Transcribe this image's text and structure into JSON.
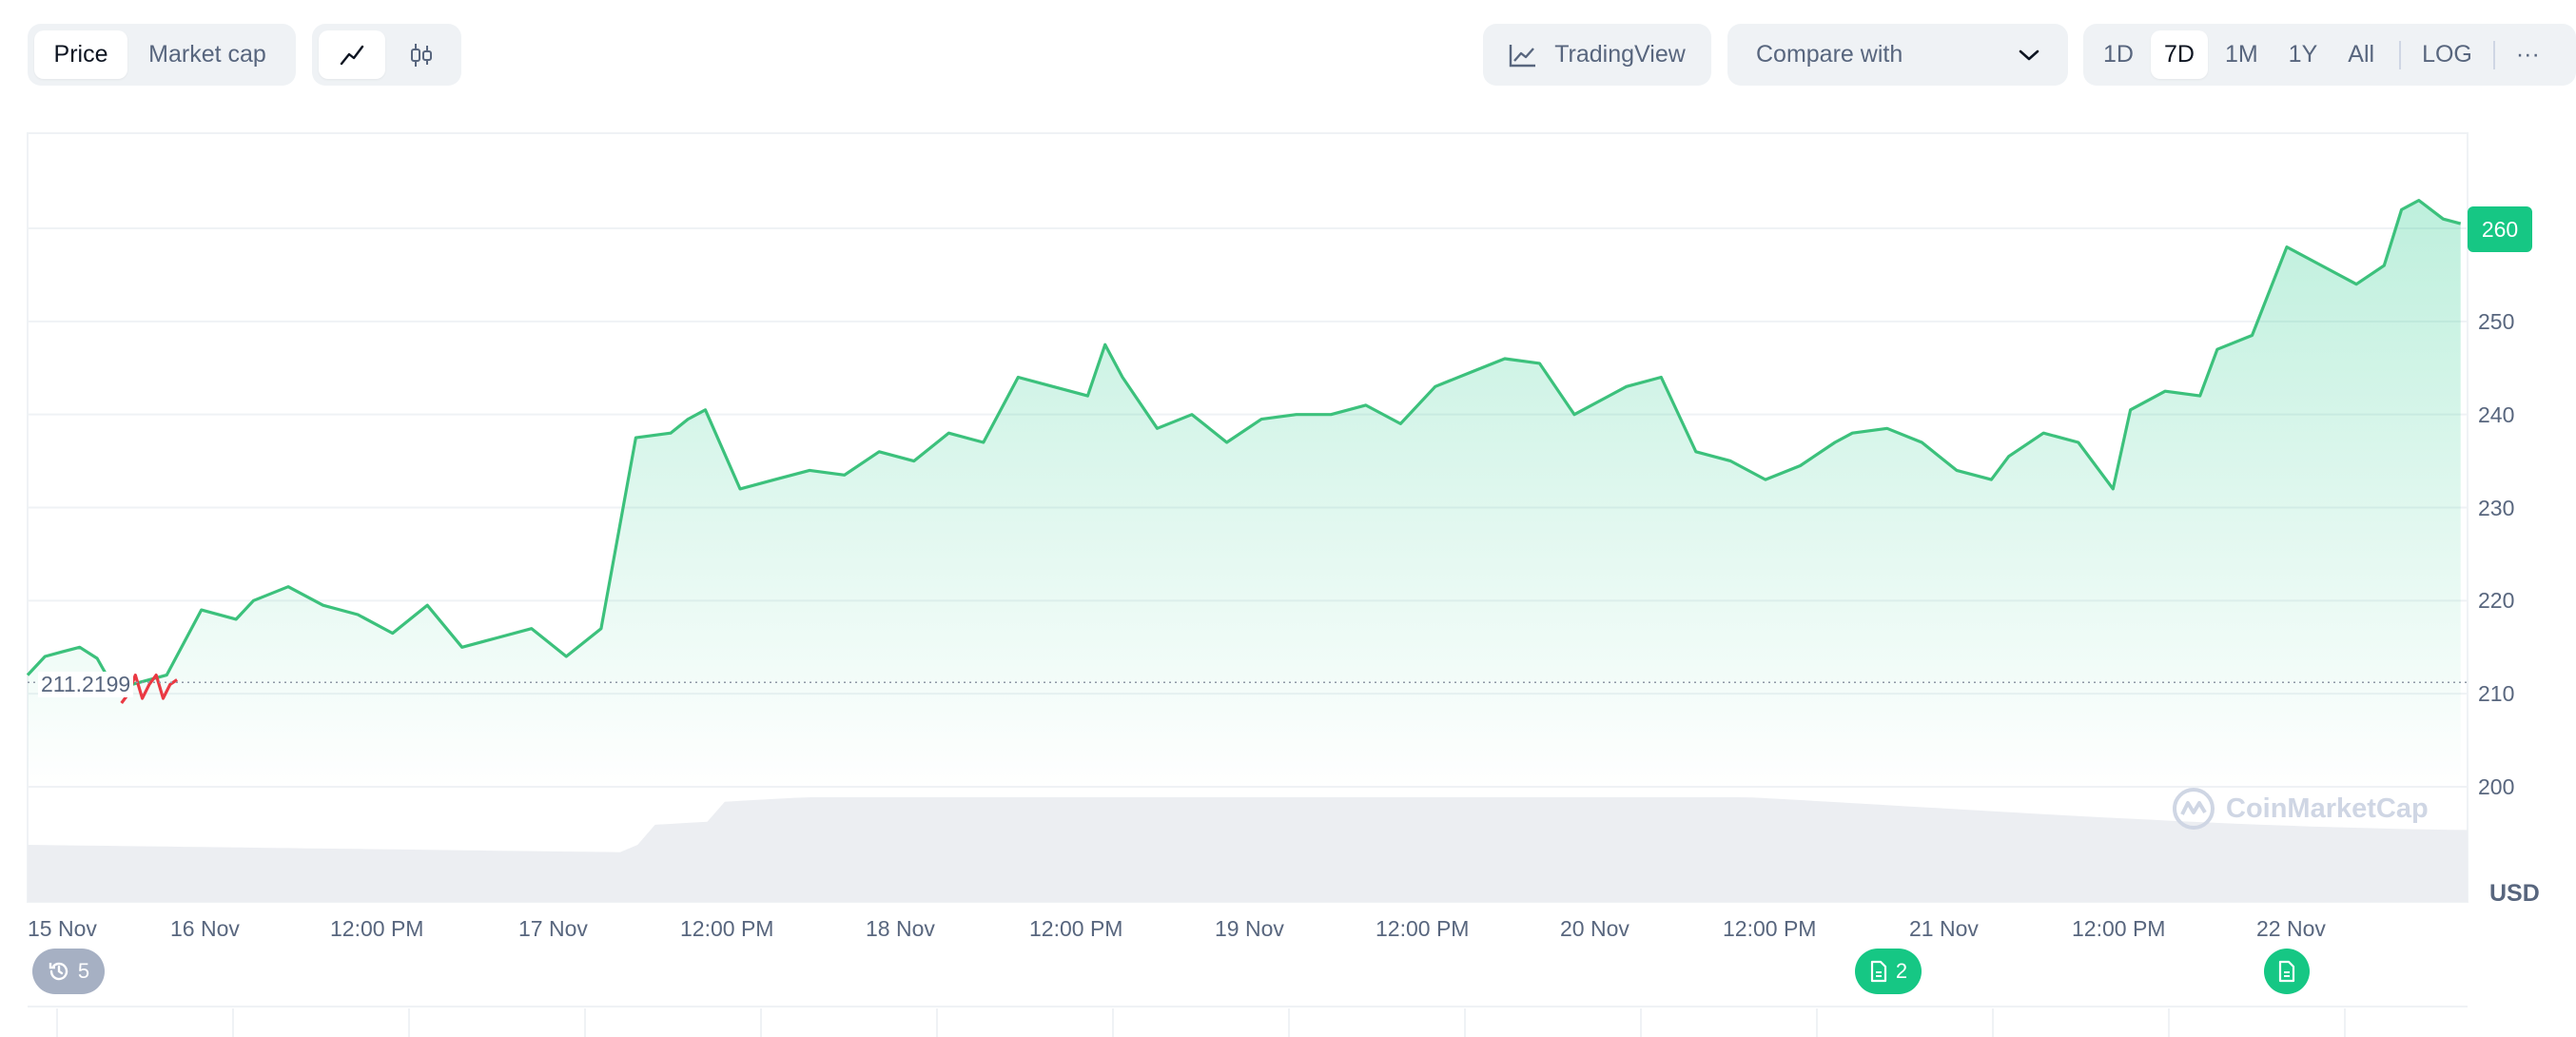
{
  "toolbar": {
    "type_tabs": [
      "Price",
      "Market cap"
    ],
    "active_type": "Price",
    "trading_view": "TradingView",
    "compare": "Compare with",
    "ranges": [
      "1D",
      "7D",
      "1M",
      "1Y",
      "All",
      "LOG"
    ],
    "active_range": "7D",
    "more": "···"
  },
  "colors": {
    "up": "#16c784",
    "line": "#3cc17c",
    "down": "#ea3943",
    "grid": "#eff2f5"
  },
  "chart_data": {
    "type": "line",
    "currency_label": "USD",
    "open_price_label": "211.2199",
    "last_price_label": "260",
    "y_ticks": [
      200,
      210,
      220,
      230,
      240,
      250
    ],
    "ylim": [
      188,
      270
    ],
    "x_tick_labels": [
      "15 Nov",
      "16 Nov",
      "12:00 PM",
      "17 Nov",
      "12:00 PM",
      "18 Nov",
      "12:00 PM",
      "19 Nov",
      "12:00 PM",
      "20 Nov",
      "12:00 PM",
      "21 Nov",
      "12:00 PM",
      "22 Nov"
    ],
    "x_tick_pos_days": [
      0,
      0.5,
      1,
      1.5,
      2,
      2.5,
      3,
      3.5,
      4,
      4.5,
      5,
      5.5,
      6,
      6.5
    ],
    "series": [
      {
        "x": [
          0,
          0.05,
          0.1,
          0.15,
          0.2,
          0.25,
          0.3,
          0.4,
          0.5,
          0.6,
          0.65,
          0.75,
          0.85,
          0.95,
          1.05,
          1.15,
          1.25,
          1.35,
          1.45,
          1.55,
          1.65,
          1.75,
          1.85,
          1.9,
          1.95,
          2.05,
          2.15,
          2.25,
          2.35,
          2.45,
          2.55,
          2.65,
          2.75,
          2.85,
          2.95,
          3.05,
          3.1,
          3.15,
          3.25,
          3.35,
          3.45,
          3.55,
          3.65,
          3.75,
          3.85,
          3.95,
          4.05,
          4.15,
          4.25,
          4.35,
          4.45,
          4.55,
          4.6,
          4.7,
          4.8,
          4.9,
          5.0,
          5.1,
          5.2,
          5.25,
          5.35,
          5.45,
          5.55,
          5.65,
          5.7,
          5.8,
          5.9,
          6.0,
          6.05,
          6.15,
          6.25,
          6.3,
          6.4,
          6.5,
          6.6,
          6.7,
          6.78,
          6.83,
          6.88,
          6.95,
          7.0
        ],
        "y": [
          212.0,
          214.0,
          214.5,
          215.0,
          213.8,
          210.5,
          211.0,
          212.0,
          219.0,
          218.0,
          220.0,
          221.5,
          219.5,
          218.5,
          216.5,
          219.5,
          215.0,
          216.0,
          217.0,
          214.0,
          217.0,
          237.5,
          238.0,
          239.5,
          240.5,
          232.0,
          233.0,
          234.0,
          233.5,
          236.0,
          235.0,
          238.0,
          237.0,
          244.0,
          243.0,
          242.0,
          247.5,
          244.0,
          238.5,
          240.0,
          237.0,
          239.5,
          240.0,
          240.0,
          241.0,
          239.0,
          243.0,
          244.5,
          246.0,
          245.5,
          240.0,
          242.0,
          243.0,
          244.0,
          236.0,
          235.0,
          233.0,
          234.5,
          237.0,
          238.0,
          238.5,
          237.0,
          234.0,
          233.0,
          235.5,
          238.0,
          237.0,
          232.0,
          240.5,
          242.5,
          242.0,
          247.0,
          248.5,
          258.0,
          256.0,
          254.0,
          256.0,
          262.0,
          263.0,
          261.0,
          260.5
        ]
      },
      {
        "x": [
          0.27,
          0.29,
          0.31,
          0.33,
          0.35,
          0.37,
          0.39,
          0.41,
          0.43
        ],
        "y": [
          209.0,
          210.0,
          212.0,
          209.5,
          211.0,
          212.0,
          209.5,
          211.0,
          211.5
        ]
      }
    ]
  },
  "events": [
    {
      "label": "5",
      "kind": "history-icon"
    },
    {
      "label": "2",
      "kind": "document-icon"
    },
    {
      "label": "",
      "kind": "document-icon"
    }
  ],
  "watermark": "CoinMarketCap"
}
